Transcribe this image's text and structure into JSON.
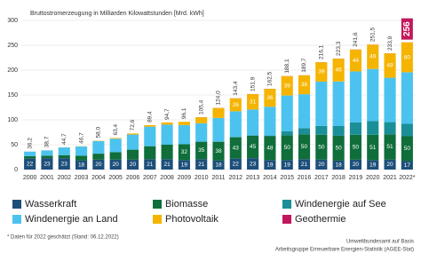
{
  "chart_data": {
    "type": "stacked-bar",
    "title": "Bruttostromerzeugung in Milliarden Kilowattstunden [Mrd. kWh]",
    "categories": [
      "2000",
      "2001",
      "2002",
      "2003",
      "2004",
      "2005",
      "2006",
      "2007",
      "2008",
      "2009",
      "2010",
      "2011",
      "2012",
      "2013",
      "2014",
      "2015",
      "2016",
      "2017",
      "2018",
      "2019",
      "2020",
      "2021",
      "2022*"
    ],
    "series": [
      {
        "name": "Wasserkraft",
        "color": "#1d4f7a",
        "values": [
          22,
          23,
          23,
          18,
          20,
          20,
          20,
          21,
          21,
          19,
          21,
          18,
          22,
          23,
          19,
          19,
          21,
          20,
          18,
          20,
          19,
          20,
          17
        ]
      },
      {
        "name": "Biomasse",
        "color": "#0f6e3a",
        "values": [
          5,
          5,
          6,
          10,
          12,
          15,
          20,
          26,
          29,
          32,
          35,
          38,
          43,
          45,
          48,
          50,
          50,
          50,
          50,
          50,
          51,
          51,
          50
        ]
      },
      {
        "name": "Windenergie auf See",
        "color": "#1a8f98",
        "values": [
          0,
          0,
          0,
          0,
          0,
          0,
          0,
          0,
          0,
          0,
          0.2,
          0.6,
          0.7,
          0.9,
          1.5,
          8.3,
          12.3,
          17.7,
          19.5,
          24.7,
          27.3,
          24.4,
          25
        ]
      },
      {
        "name": "Windenergie an Land",
        "color": "#4cc3ef",
        "values": [
          9.2,
          10.6,
          15.5,
          18.4,
          25.4,
          27.1,
          30.4,
          39.3,
          40.3,
          38.5,
          37.0,
          47.2,
          51.5,
          51.8,
          57.8,
          71.6,
          68.2,
          89.2,
          89.6,
          102.7,
          105.0,
          89.3,
          103.8
        ]
      },
      {
        "name": "Photovoltaik",
        "color": "#f5b400",
        "values": [
          0,
          0.1,
          0.2,
          0.3,
          0.6,
          1.3,
          2.2,
          3.1,
          4.4,
          6.6,
          12,
          20,
          26,
          31,
          36,
          39,
          38,
          39,
          46,
          44,
          49,
          49,
          60
        ]
      },
      {
        "name": "Geothermie",
        "color": "#c2185b",
        "values": [
          0,
          0,
          0,
          0,
          0,
          0,
          0,
          0,
          0,
          0,
          0.2,
          0.2,
          0.2,
          0.2,
          0.2,
          0.2,
          0.2,
          0.2,
          0.2,
          0.2,
          0.2,
          0.2,
          0.2
        ]
      }
    ],
    "totals": [
      36.2,
      38.7,
      44.7,
      46.7,
      58.0,
      63.4,
      72.6,
      89.4,
      94.7,
      96.1,
      105.4,
      124.0,
      143.4,
      151.9,
      162.5,
      188.1,
      189.7,
      216.1,
      223.3,
      241.6,
      251.5,
      233.9,
      256
    ],
    "totals_labels": [
      "36,2",
      "38,7",
      "44,7",
      "46,7",
      "58,0",
      "63,4",
      "72,6",
      "89,4",
      "94,7",
      "96,1",
      "105,4",
      "124,0",
      "143,4",
      "151,9",
      "162,5",
      "188,1",
      "189,7",
      "216,1",
      "223,3",
      "241,6",
      "251,5",
      "233,9",
      "256"
    ],
    "ylim": [
      0,
      300
    ],
    "yticks": [
      0,
      50,
      100,
      150,
      200,
      250,
      300
    ],
    "grid": true,
    "footnote": "* Daten für 2022 geschätzt (Stand: 06.12.2022)",
    "source": [
      "Umweltbundesamt auf Basis",
      "Arbeitsgruppe Erneuerbare Energien-Statistik (AGEE-Stat)"
    ]
  }
}
